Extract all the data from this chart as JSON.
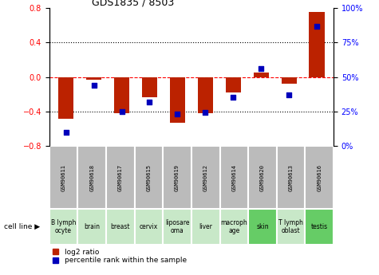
{
  "title": "GDS1835 / 8503",
  "gsm_labels": [
    "GSM90611",
    "GSM90618",
    "GSM90617",
    "GSM90615",
    "GSM90619",
    "GSM90612",
    "GSM90614",
    "GSM90620",
    "GSM90613",
    "GSM90616"
  ],
  "cell_labels": [
    "B lymph\nocyte",
    "brain",
    "breast",
    "cervix",
    "liposare\noma",
    "liver",
    "macroph\nage",
    "skin",
    "T lymph\noblast",
    "testis"
  ],
  "cell_bg_light": "#c8e8c8",
  "cell_bg_bright": "#66cc66",
  "cell_bright_indices": [
    7,
    9
  ],
  "log2_ratio": [
    -0.49,
    -0.03,
    -0.42,
    -0.24,
    -0.53,
    -0.42,
    -0.18,
    0.05,
    -0.08,
    0.76
  ],
  "pct_rank": [
    10,
    44,
    25,
    32,
    23,
    24,
    35,
    56,
    37,
    87
  ],
  "ylim_left": [
    -0.8,
    0.8
  ],
  "ylim_right": [
    0,
    100
  ],
  "bar_color_red": "#bb2200",
  "bar_color_blue": "#0000bb",
  "legend_red": "log2 ratio",
  "legend_blue": "percentile rank within the sample",
  "gsm_bg": "#bbbbbb",
  "cell_line_label": "cell line"
}
